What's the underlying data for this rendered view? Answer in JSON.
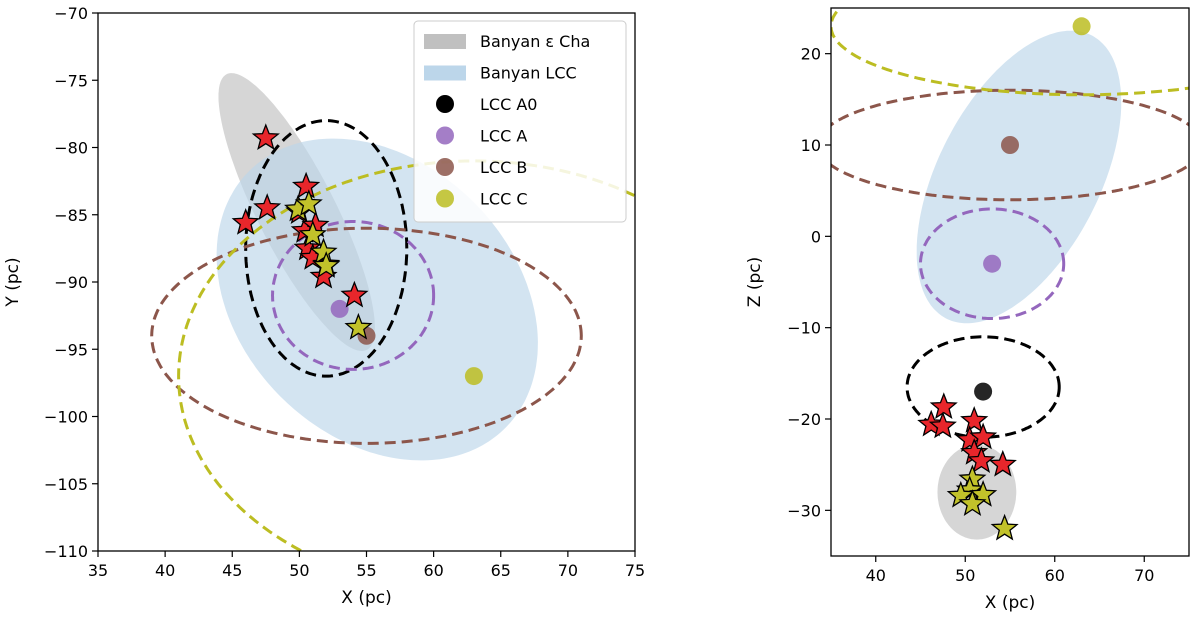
{
  "colors": {
    "eps_cha_fill": "#c0c0c0",
    "lcc_fill": "#bcd6ea",
    "A0": "#000000",
    "A": "#9467bd",
    "B": "#8c564b",
    "C": "#bcbd22",
    "star_red": "#e8262b",
    "star_yellow": "#c2c22a"
  },
  "chart_data": [
    {
      "type": "scatter",
      "panel": "left",
      "xlabel": "X (pc)",
      "ylabel": "Y (pc)",
      "xlim": [
        35,
        75
      ],
      "ylim": [
        -110,
        -70
      ],
      "xticks": [
        35,
        40,
        45,
        50,
        55,
        60,
        65,
        70,
        75
      ],
      "yticks": [
        -110,
        -105,
        -100,
        -95,
        -90,
        -85,
        -80,
        -75,
        -70
      ],
      "xtick_labels": [
        "35",
        "40",
        "45",
        "50",
        "55",
        "60",
        "65",
        "70",
        "75"
      ],
      "ytick_labels": [
        "−110",
        "−105",
        "−100",
        "−95",
        "−90",
        "−85",
        "−80",
        "−75",
        "−70"
      ],
      "filled_ellipses": [
        {
          "name": "Banyan eps Cha",
          "color": "eps_cha_fill",
          "alpha": 0.65,
          "center": [
            49.8,
            -84.8
          ],
          "semi_axes": [
            2.9,
            11.5
          ],
          "angle": 27
        },
        {
          "name": "Banyan LCC",
          "color": "lcc_fill",
          "alpha": 0.65,
          "center": [
            55.8,
            -91.3
          ],
          "semi_axes": [
            13.5,
            10.2
          ],
          "angle": -45
        }
      ],
      "dashed_ellipses": [
        {
          "group": "A0",
          "color": "A0",
          "center": [
            52.0,
            -87.5
          ],
          "semi_axes": [
            6.0,
            9.5
          ],
          "angle": 0
        },
        {
          "group": "A",
          "color": "A",
          "center": [
            54.0,
            -91.0
          ],
          "semi_axes": [
            6.0,
            5.5
          ],
          "angle": 0
        },
        {
          "group": "B",
          "color": "B",
          "center": [
            55.0,
            -94.0
          ],
          "semi_axes": [
            16.0,
            8.0
          ],
          "angle": 0
        },
        {
          "group": "C",
          "color": "C",
          "center": [
            63.0,
            -97.0
          ],
          "semi_axes": [
            22.0,
            16.0
          ],
          "angle": 0
        }
      ],
      "group_centers": [
        {
          "group": "A",
          "color": "A",
          "x": 53.0,
          "y": -92.0
        },
        {
          "group": "B",
          "color": "B",
          "x": 55.0,
          "y": -94.0
        },
        {
          "group": "C",
          "color": "C",
          "x": 63.0,
          "y": -97.0
        }
      ],
      "red_stars": [
        {
          "x": 47.5,
          "y": -79.3
        },
        {
          "x": 47.6,
          "y": -84.5
        },
        {
          "x": 46.0,
          "y": -85.6
        },
        {
          "x": 50.5,
          "y": -82.9
        },
        {
          "x": 50.0,
          "y": -84.8
        },
        {
          "x": 50.4,
          "y": -86.2
        },
        {
          "x": 51.2,
          "y": -85.8
        },
        {
          "x": 50.6,
          "y": -87.5
        },
        {
          "x": 51.0,
          "y": -88.2
        },
        {
          "x": 52.0,
          "y": -88.7
        },
        {
          "x": 51.8,
          "y": -89.6
        },
        {
          "x": 54.1,
          "y": -91.0
        }
      ],
      "yellow_stars": [
        {
          "x": 49.9,
          "y": -84.6
        },
        {
          "x": 50.7,
          "y": -84.2
        },
        {
          "x": 51.0,
          "y": -86.5
        },
        {
          "x": 51.8,
          "y": -87.8
        },
        {
          "x": 52.0,
          "y": -88.8
        },
        {
          "x": 54.4,
          "y": -93.4
        }
      ],
      "legend": {
        "placement": "upper-right",
        "entries": [
          {
            "label": "Banyan ε Cha",
            "kind": "patch",
            "color": "eps_cha_fill"
          },
          {
            "label": "Banyan LCC",
            "kind": "patch",
            "color": "lcc_fill"
          },
          {
            "label": "LCC A0",
            "kind": "marker",
            "color": "A0"
          },
          {
            "label": "LCC A",
            "kind": "marker",
            "color": "A"
          },
          {
            "label": "LCC B",
            "kind": "marker",
            "color": "B"
          },
          {
            "label": "LCC C",
            "kind": "marker",
            "color": "C"
          }
        ]
      }
    },
    {
      "type": "scatter",
      "panel": "right",
      "xlabel": "X (pc)",
      "ylabel": "Z (pc)",
      "xlim": [
        35,
        75
      ],
      "ylim": [
        -35,
        25
      ],
      "xticks": [
        40,
        50,
        60,
        70
      ],
      "yticks": [
        -30,
        -20,
        -10,
        0,
        10,
        20
      ],
      "xtick_labels": [
        "40",
        "50",
        "60",
        "70"
      ],
      "ytick_labels": [
        "−30",
        "−20",
        "−10",
        "0",
        "10",
        "20"
      ],
      "filled_ellipses": [
        {
          "name": "Banyan eps Cha",
          "color": "eps_cha_fill",
          "alpha": 0.65,
          "center": [
            51.3,
            -28.0
          ],
          "semi_axes": [
            4.4,
            5.2
          ],
          "angle": 0
        },
        {
          "name": "Banyan LCC",
          "color": "lcc_fill",
          "alpha": 0.65,
          "center": [
            56.0,
            6.5
          ],
          "semi_axes": [
            9.0,
            17.5
          ],
          "angle": -28
        }
      ],
      "dashed_ellipses": [
        {
          "group": "A0",
          "color": "A0",
          "center": [
            52.0,
            -16.5
          ],
          "semi_axes": [
            8.5,
            5.5
          ],
          "angle": 0
        },
        {
          "group": "A",
          "color": "A",
          "center": [
            53.0,
            -3.0
          ],
          "semi_axes": [
            8.0,
            6.0
          ],
          "angle": 0
        },
        {
          "group": "B",
          "color": "B",
          "center": [
            55.0,
            10.0
          ],
          "semi_axes": [
            21.5,
            6.0
          ],
          "angle": 0
        },
        {
          "group": "C",
          "color": "C",
          "center": [
            63.0,
            23.0
          ],
          "semi_axes": [
            28.0,
            7.5
          ],
          "angle": 0
        }
      ],
      "group_centers": [
        {
          "group": "A0",
          "color": "A0",
          "x": 52.0,
          "y": -17.0
        },
        {
          "group": "A",
          "color": "A",
          "x": 53.0,
          "y": -3.0
        },
        {
          "group": "B",
          "color": "B",
          "x": 55.0,
          "y": 10.0
        },
        {
          "group": "C",
          "color": "C",
          "x": 63.0,
          "y": 23.0
        }
      ],
      "red_stars": [
        {
          "x": 47.6,
          "y": -18.7
        },
        {
          "x": 46.2,
          "y": -20.6
        },
        {
          "x": 47.5,
          "y": -20.8
        },
        {
          "x": 51.0,
          "y": -20.2
        },
        {
          "x": 50.5,
          "y": -22.3
        },
        {
          "x": 52.0,
          "y": -22.0
        },
        {
          "x": 51.0,
          "y": -23.7
        },
        {
          "x": 51.8,
          "y": -24.6
        },
        {
          "x": 54.2,
          "y": -25.0
        }
      ],
      "yellow_stars": [
        {
          "x": 50.8,
          "y": -26.6
        },
        {
          "x": 50.5,
          "y": -27.8
        },
        {
          "x": 49.5,
          "y": -28.4
        },
        {
          "x": 52.0,
          "y": -28.3
        },
        {
          "x": 50.8,
          "y": -29.3
        },
        {
          "x": 54.4,
          "y": -32.0
        }
      ],
      "legend": null
    }
  ]
}
